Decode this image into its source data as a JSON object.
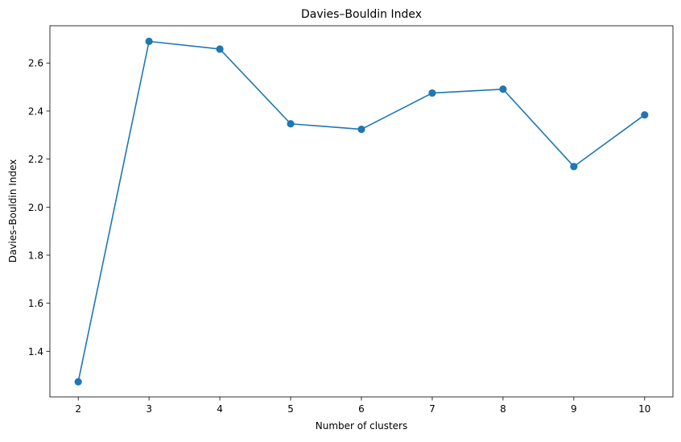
{
  "chart_data": {
    "type": "line",
    "title": "Davies–Bouldin Index",
    "xlabel": "Number of clusters",
    "ylabel": "Davies–Bouldin Index",
    "x": [
      2,
      3,
      4,
      5,
      6,
      7,
      8,
      9,
      10
    ],
    "series": [
      {
        "values": [
          1.273,
          2.69,
          2.658,
          2.347,
          2.324,
          2.475,
          2.491,
          2.169,
          2.384
        ],
        "color": "#1f77b4",
        "marker": "circle"
      }
    ],
    "xlim": [
      1.6,
      10.4
    ],
    "ylim": [
      1.21,
      2.755
    ],
    "xticks": [
      2,
      3,
      4,
      5,
      6,
      7,
      8,
      9,
      10
    ],
    "yticks": [
      "1.4",
      "1.6",
      "1.8",
      "2.0",
      "2.2",
      "2.4",
      "2.6"
    ],
    "grid": false,
    "legend": "none"
  }
}
